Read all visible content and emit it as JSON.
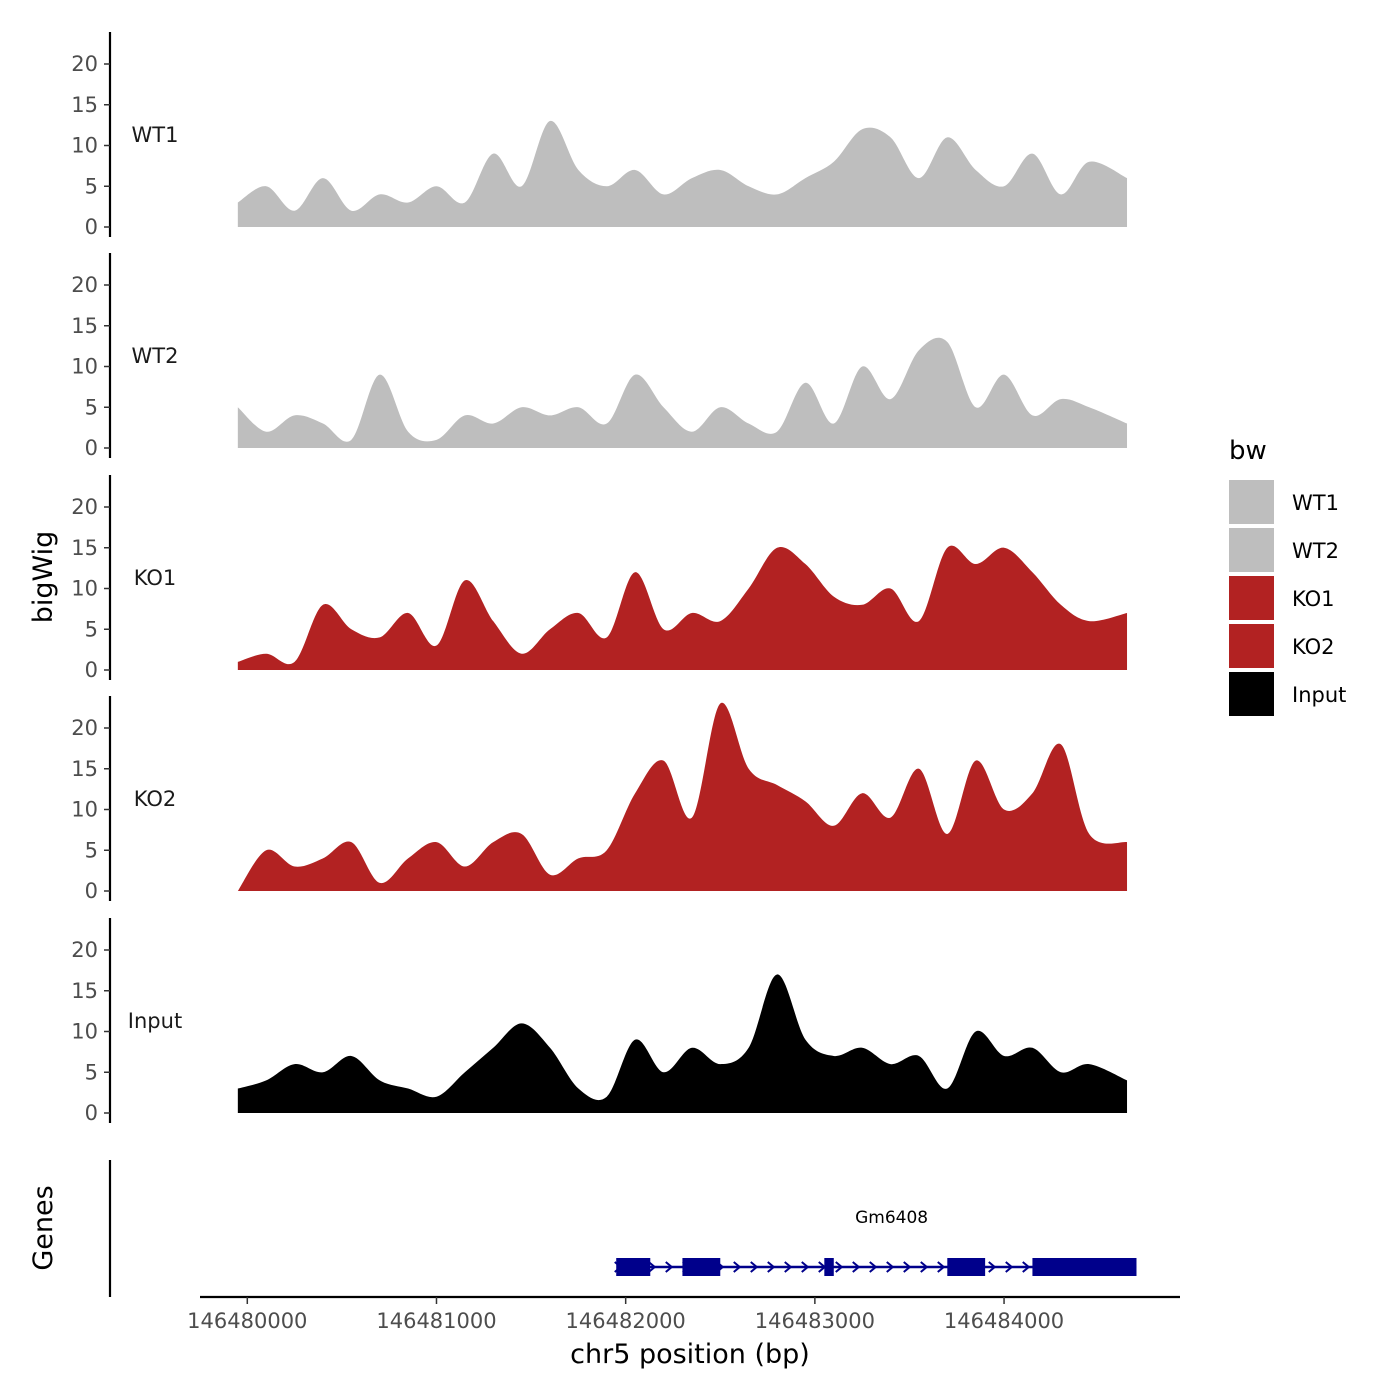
{
  "chart_data": {
    "type": "area",
    "ylabel": "bigWig",
    "genes_label": "Genes",
    "xlabel": "chr5 position (bp)",
    "xlim": [
      146479750,
      146484930
    ],
    "ylim": [
      0,
      24
    ],
    "y_ticks": [
      0,
      5,
      10,
      15,
      20
    ],
    "x_ticks": [
      146480000,
      146481000,
      146482000,
      146483000,
      146484000
    ],
    "x_tick_labels": [
      "146480000",
      "146481000",
      "146482000",
      "146483000",
      "146484000"
    ],
    "x_data": [
      146479950,
      146480100,
      146480250,
      146480400,
      146480550,
      146480700,
      146480850,
      146481000,
      146481150,
      146481300,
      146481450,
      146481600,
      146481750,
      146481900,
      146482050,
      146482200,
      146482350,
      146482500,
      146482650,
      146482800,
      146482950,
      146483100,
      146483250,
      146483400,
      146483550,
      146483700,
      146483850,
      146484000,
      146484150,
      146484300,
      146484450,
      146484650
    ],
    "legend": {
      "title": "bw",
      "entries": [
        {
          "label": "WT1",
          "color": "#bebebe"
        },
        {
          "label": "WT2",
          "color": "#bebebe"
        },
        {
          "label": "KO1",
          "color": "#b22222"
        },
        {
          "label": "KO2",
          "color": "#b22222"
        },
        {
          "label": "Input",
          "color": "#000000"
        }
      ]
    },
    "series": [
      {
        "name": "WT1",
        "color": "#bebebe",
        "values": [
          3,
          5,
          2,
          6,
          2,
          4,
          3,
          5,
          3,
          9,
          5,
          13,
          7,
          5,
          7,
          4,
          6,
          7,
          5,
          4,
          6,
          8,
          12,
          11,
          6,
          11,
          7,
          5,
          9,
          4,
          8,
          6
        ]
      },
      {
        "name": "WT2",
        "color": "#bebebe",
        "values": [
          5,
          2,
          4,
          3,
          1,
          9,
          2,
          1,
          4,
          3,
          5,
          4,
          5,
          3,
          9,
          5,
          2,
          5,
          3,
          2,
          8,
          3,
          10,
          6,
          12,
          13,
          5,
          9,
          4,
          6,
          5,
          3
        ]
      },
      {
        "name": "KO1",
        "color": "#b22222",
        "values": [
          1,
          2,
          1,
          8,
          5,
          4,
          7,
          3,
          11,
          6,
          2,
          5,
          7,
          4,
          12,
          5,
          7,
          6,
          10,
          15,
          13,
          9,
          8,
          10,
          6,
          15,
          13,
          15,
          12,
          8,
          6,
          7
        ]
      },
      {
        "name": "KO2",
        "color": "#b22222",
        "values": [
          0,
          5,
          3,
          4,
          6,
          1,
          4,
          6,
          3,
          6,
          7,
          2,
          4,
          5,
          12,
          16,
          9,
          23,
          15,
          13,
          11,
          8,
          12,
          9,
          15,
          7,
          16,
          10,
          12,
          18,
          7,
          6
        ]
      },
      {
        "name": "Input",
        "color": "#000000",
        "values": [
          3,
          4,
          6,
          5,
          7,
          4,
          3,
          2,
          5,
          8,
          11,
          8,
          3,
          2,
          9,
          5,
          8,
          6,
          8,
          17,
          9,
          7,
          8,
          6,
          7,
          3,
          10,
          7,
          8,
          5,
          6,
          4
        ]
      }
    ],
    "genes": [
      {
        "name": "Gm6408",
        "start": 146481900,
        "end": 146484700,
        "strand": "+",
        "color": "#00008b",
        "exons": [
          [
            146481950,
            146482130
          ],
          [
            146482300,
            146482500
          ],
          [
            146483050,
            146483100
          ],
          [
            146483700,
            146483900
          ],
          [
            146484150,
            146484700
          ]
        ]
      }
    ]
  }
}
